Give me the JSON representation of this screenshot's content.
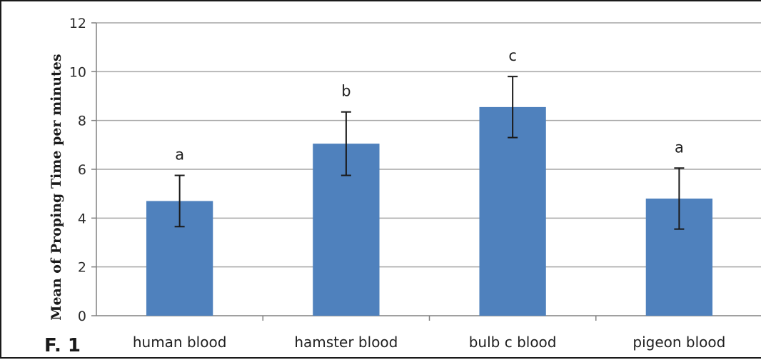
{
  "figure_label": "F. 1",
  "chart_data": {
    "type": "bar",
    "title": "",
    "xlabel": "",
    "ylabel": "Mean of Proping Time per minutes",
    "categories": [
      "human blood",
      "hamster blood",
      "bulb c blood",
      "pigeon blood"
    ],
    "values": [
      4.7,
      7.05,
      8.55,
      4.8
    ],
    "error": [
      1.05,
      1.3,
      1.25,
      1.25
    ],
    "annotations": [
      "a",
      "b",
      "c",
      "a"
    ],
    "ylim": [
      0,
      12
    ],
    "yticks": [
      "0",
      "2",
      "4",
      "6",
      "8",
      "10",
      "12"
    ],
    "grid": true,
    "legend": "none",
    "bar_color": "#4f81bd",
    "gridline_color": "#a6a6a6",
    "errorbar_color": "#1a1a1a"
  }
}
